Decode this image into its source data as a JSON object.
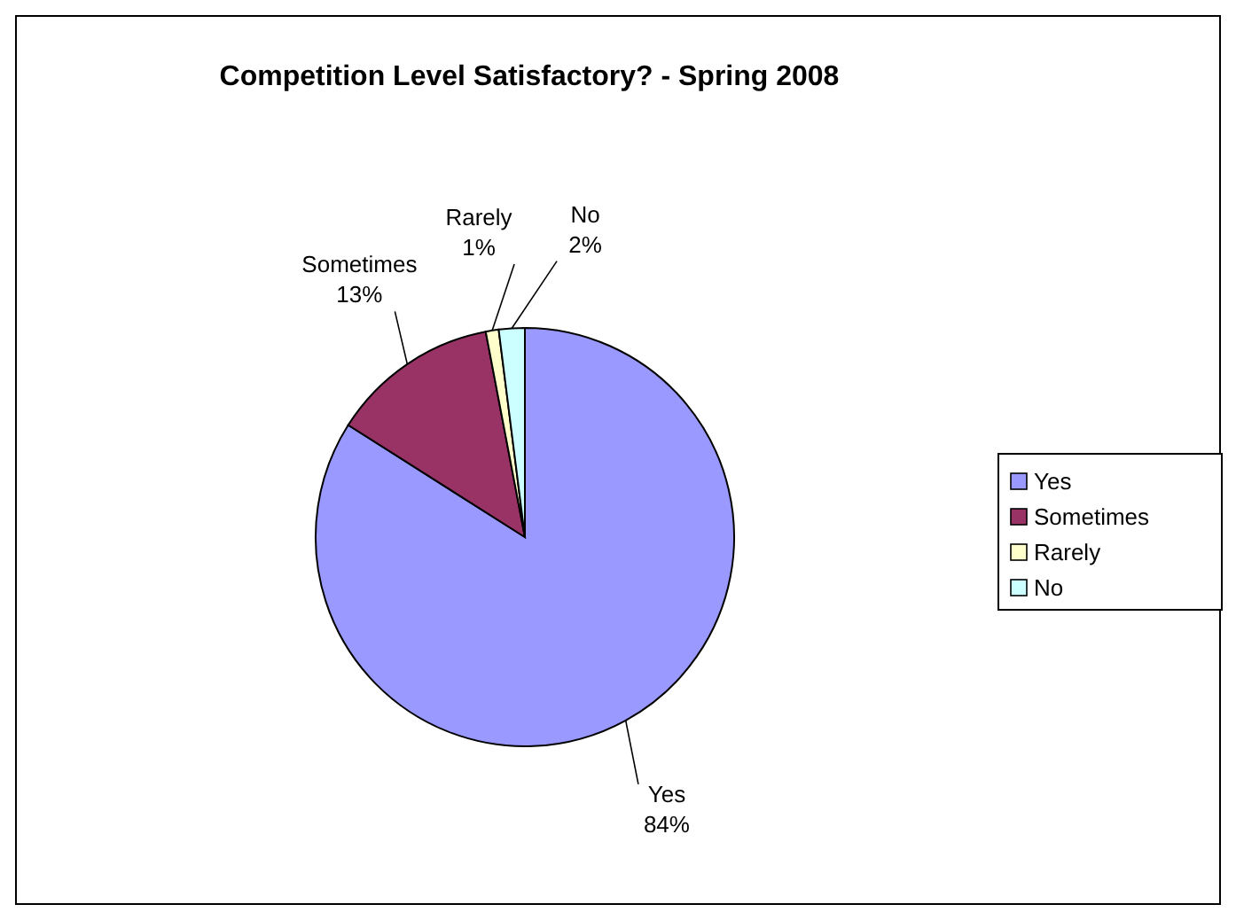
{
  "chart_data": {
    "type": "pie",
    "title": "Competition Level Satisfactory? - Spring 2008",
    "categories": [
      "Yes",
      "Sometimes",
      "Rarely",
      "No"
    ],
    "values": [
      84,
      13,
      1,
      2
    ],
    "colors": [
      "#9999ff",
      "#993366",
      "#ffffcc",
      "#ccffff"
    ],
    "value_labels": [
      "84%",
      "13%",
      "1%",
      "2%"
    ],
    "legend": "right"
  }
}
